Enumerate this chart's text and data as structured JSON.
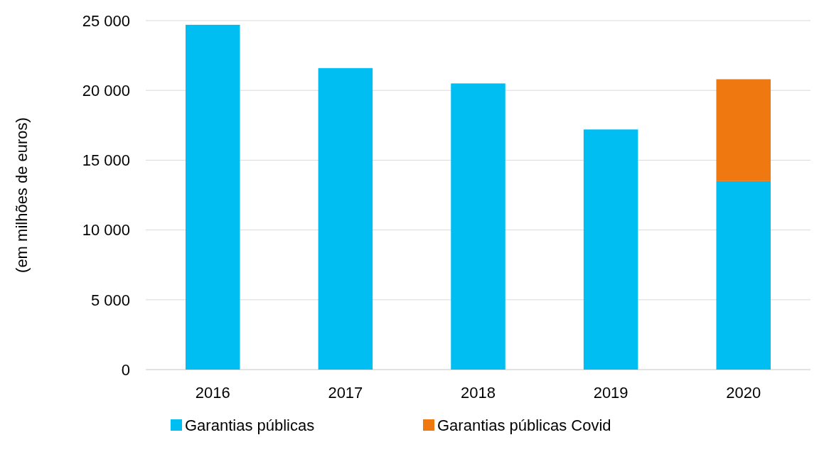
{
  "chart_data": {
    "type": "bar",
    "stacked": true,
    "ylabel": "(em milhões de euros)",
    "categories": [
      "2016",
      "2017",
      "2018",
      "2019",
      "2020"
    ],
    "series": [
      {
        "name": "Garantias públicas",
        "color": "#00bdf2",
        "values": [
          24700,
          21600,
          20500,
          17200,
          13500
        ]
      },
      {
        "name": "Garantias públicas Covid",
        "color": "#f07810",
        "values": [
          null,
          null,
          null,
          null,
          7300
        ]
      }
    ],
    "ylim": [
      0,
      25000
    ],
    "yticks": [
      {
        "value": 0,
        "label": "0"
      },
      {
        "value": 5000,
        "label": "5 000"
      },
      {
        "value": 10000,
        "label": "10 000"
      },
      {
        "value": 15000,
        "label": "15 000"
      },
      {
        "value": 20000,
        "label": "20 000"
      },
      {
        "value": 25000,
        "label": "25 000"
      }
    ],
    "grid": "y",
    "legend": "bottom"
  }
}
